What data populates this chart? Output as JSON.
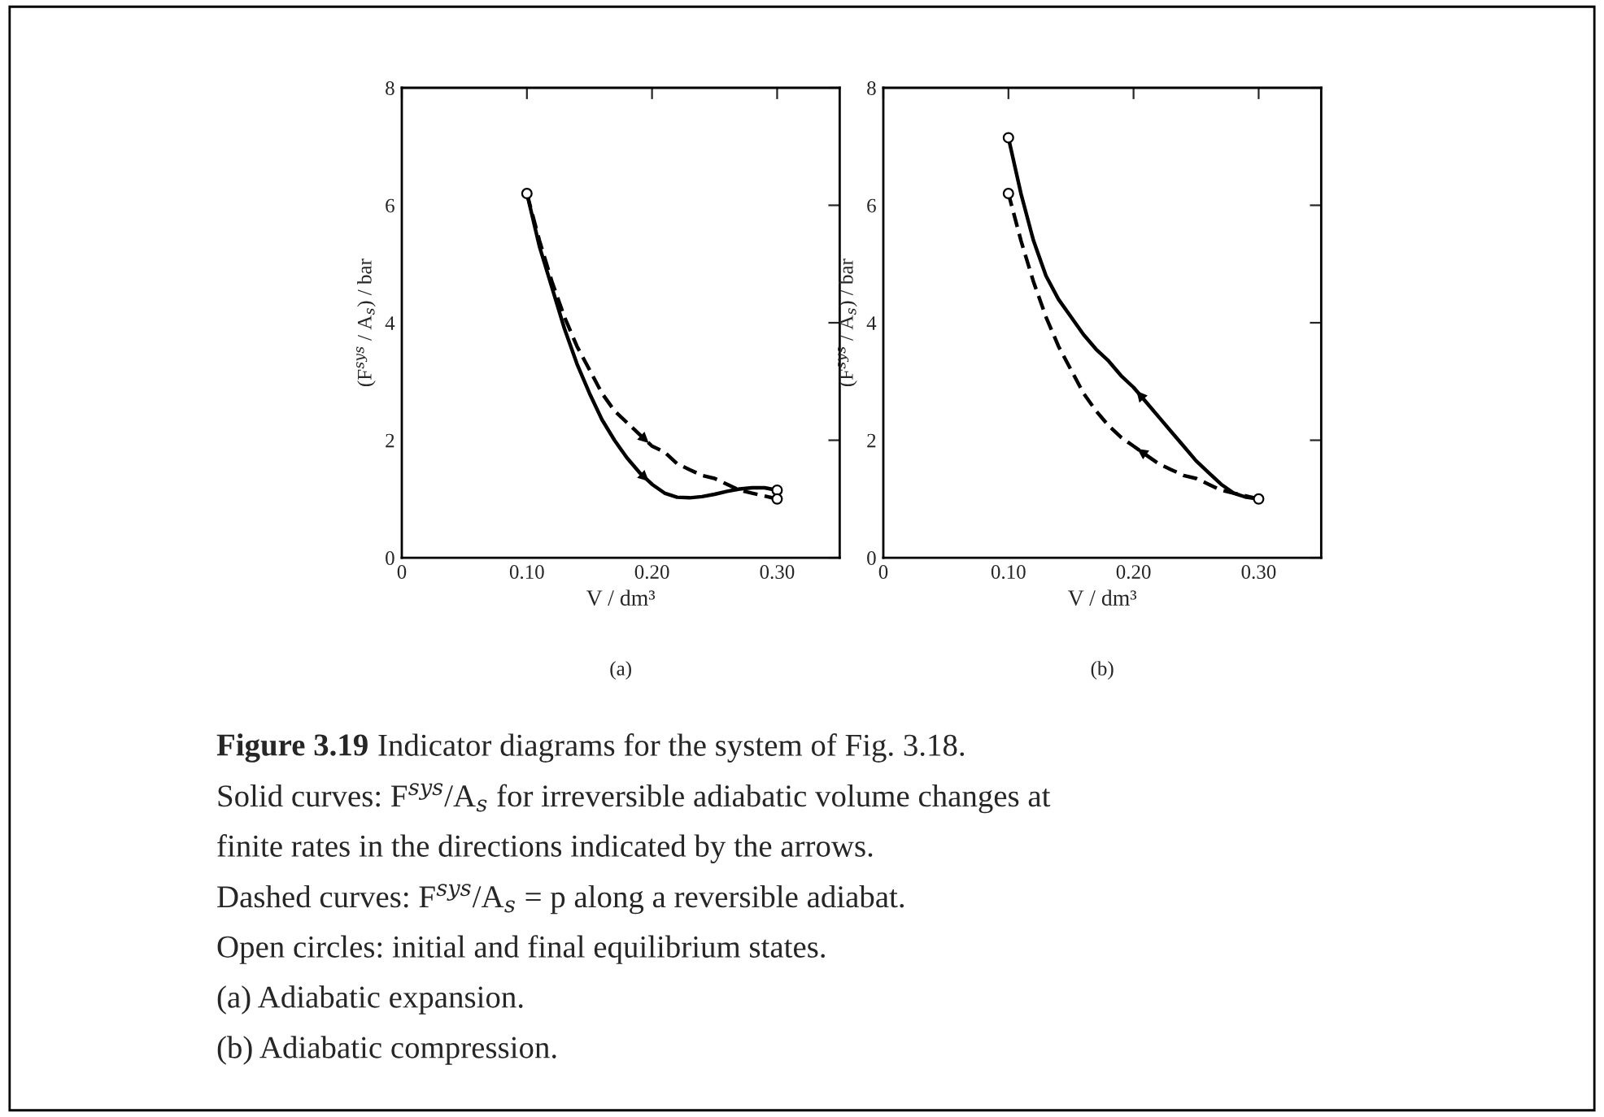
{
  "chart_data": [
    {
      "type": "line",
      "subtitle": "(a)",
      "xlabel": "V / dm³",
      "ylabel": "(F$^{sys}$ / A$_{s}$) / bar",
      "xlim": [
        0,
        0.35
      ],
      "xticks": [
        {
          "value": 0,
          "label": "0"
        },
        {
          "value": 0.1,
          "label": "0.10"
        },
        {
          "value": 0.2,
          "label": "0.20"
        },
        {
          "value": 0.3,
          "label": "0.30"
        }
      ],
      "ylim": [
        0,
        8
      ],
      "yticks": [
        0,
        2,
        4,
        6,
        8
      ],
      "series": [
        {
          "type": "line",
          "line_style": "solid",
          "color": "#000000",
          "x": [
            0.1,
            0.11,
            0.12,
            0.13,
            0.14,
            0.15,
            0.16,
            0.17,
            0.18,
            0.19,
            0.2,
            0.21,
            0.22,
            0.23,
            0.24,
            0.25,
            0.26,
            0.27,
            0.28,
            0.29,
            0.3
          ],
          "values": [
            6.2,
            5.3,
            4.6,
            3.9,
            3.3,
            2.8,
            2.35,
            2.0,
            1.7,
            1.45,
            1.25,
            1.1,
            1.03,
            1.02,
            1.04,
            1.08,
            1.13,
            1.17,
            1.19,
            1.19,
            1.15
          ]
        },
        {
          "type": "line",
          "line_style": "dashed",
          "color": "#000000",
          "x": [
            0.1,
            0.11,
            0.12,
            0.13,
            0.14,
            0.15,
            0.16,
            0.17,
            0.18,
            0.19,
            0.2,
            0.21,
            0.22,
            0.23,
            0.24,
            0.25,
            0.26,
            0.27,
            0.28,
            0.29,
            0.3
          ],
          "values": [
            6.2,
            5.4,
            4.7,
            4.1,
            3.6,
            3.2,
            2.8,
            2.5,
            2.3,
            2.1,
            1.9,
            1.8,
            1.6,
            1.5,
            1.4,
            1.35,
            1.25,
            1.15,
            1.1,
            1.05,
            1.0
          ]
        },
        {
          "type": "scatter",
          "marker": "circle",
          "color": "#000000",
          "x": [
            0.1,
            0.3,
            0.3
          ],
          "values": [
            6.2,
            1.15,
            1.0
          ]
        }
      ]
    },
    {
      "type": "line",
      "subtitle": "(b)",
      "xlabel": "V / dm³",
      "ylabel": "(F$^{sys}$ / A$_{s}$) / bar",
      "xlim": [
        0,
        0.35
      ],
      "xticks": [
        {
          "value": 0,
          "label": "0"
        },
        {
          "value": 0.1,
          "label": "0.10"
        },
        {
          "value": 0.2,
          "label": "0.20"
        },
        {
          "value": 0.3,
          "label": "0.30"
        }
      ],
      "ylim": [
        0,
        8
      ],
      "yticks": [
        0,
        2,
        4,
        6,
        8
      ],
      "series": [
        {
          "type": "line",
          "line_style": "solid",
          "color": "#000000",
          "x": [
            0.3,
            0.29,
            0.28,
            0.27,
            0.26,
            0.25,
            0.24,
            0.23,
            0.22,
            0.21,
            0.2,
            0.19,
            0.18,
            0.17,
            0.16,
            0.15,
            0.14,
            0.13,
            0.12,
            0.11,
            0.1
          ],
          "values": [
            1.0,
            1.03,
            1.1,
            1.25,
            1.45,
            1.65,
            1.9,
            2.15,
            2.4,
            2.65,
            2.9,
            3.1,
            3.35,
            3.55,
            3.8,
            4.1,
            4.4,
            4.8,
            5.4,
            6.2,
            7.15
          ]
        },
        {
          "type": "line",
          "line_style": "dashed",
          "color": "#000000",
          "x": [
            0.3,
            0.29,
            0.28,
            0.27,
            0.26,
            0.25,
            0.24,
            0.23,
            0.22,
            0.21,
            0.2,
            0.19,
            0.18,
            0.17,
            0.16,
            0.15,
            0.14,
            0.13,
            0.12,
            0.11,
            0.1
          ],
          "values": [
            1.0,
            1.05,
            1.1,
            1.15,
            1.25,
            1.35,
            1.4,
            1.5,
            1.6,
            1.75,
            1.9,
            2.05,
            2.25,
            2.5,
            2.8,
            3.2,
            3.6,
            4.1,
            4.7,
            5.4,
            6.2
          ]
        },
        {
          "type": "scatter",
          "marker": "circle",
          "color": "#000000",
          "x": [
            0.1,
            0.1,
            0.3
          ],
          "values": [
            7.15,
            6.2,
            1.0
          ]
        }
      ]
    },
    {
      "type": "other",
      "title": "Figure 3.19",
      "annotations": [
        "Indicator diagrams for the system of Fig. 3.18.",
        "Solid curves: F$^{sys}$/A$_{s}$ for irreversible adiabatic volume changes at",
        "finite rates in the directions indicated by the arrows.",
        "Dashed curves: F$^{sys}$/A$_{s}$ = p along a reversible adiabat.",
        "Open circles: initial and final equilibrium states.",
        "(a) Adiabatic expansion.",
        "(b) Adiabatic compression."
      ]
    }
  ]
}
